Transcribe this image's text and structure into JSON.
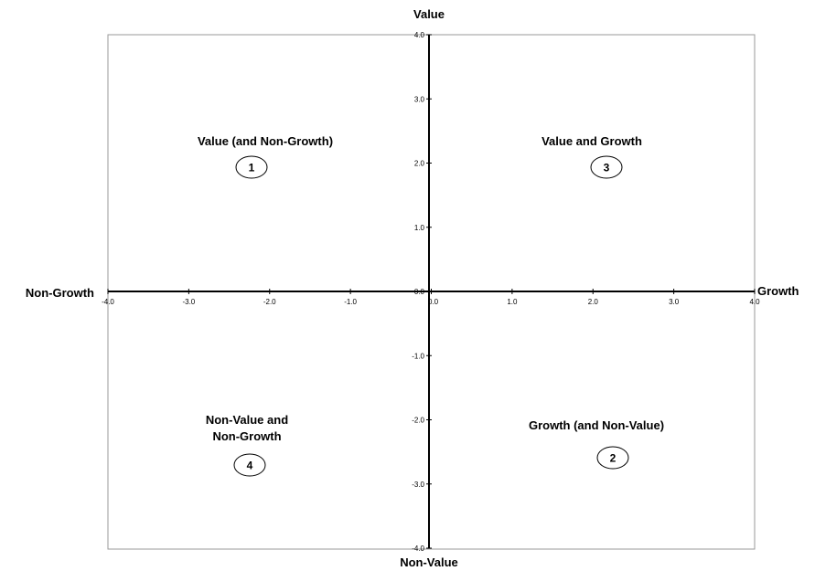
{
  "axes": {
    "top_label": "Value",
    "bottom_label": "Non-Value",
    "left_label": "Non-Growth",
    "right_label": "Growth",
    "x_range": [
      -4,
      4
    ],
    "y_range": [
      -4,
      4
    ],
    "x_ticks": [
      "-4.0",
      "-3.0",
      "-2.0",
      "-1.0",
      "0.0",
      "1.0",
      "2.0",
      "3.0",
      "4.0"
    ],
    "y_ticks": [
      "4.0",
      "3.0",
      "2.0",
      "1.0",
      "0.0",
      "-1.0",
      "-2.0",
      "-3.0",
      "-4.0"
    ]
  },
  "quadrants": [
    {
      "id": "q1",
      "lines": [
        "Value (and Non-Growth)"
      ],
      "number": "1"
    },
    {
      "id": "q3",
      "lines": [
        "Value and Growth"
      ],
      "number": "3"
    },
    {
      "id": "q4",
      "lines": [
        "Non-Value and",
        "Non-Growth"
      ],
      "number": "4"
    },
    {
      "id": "q2",
      "lines": [
        "Growth (and Non-Value)"
      ],
      "number": "2"
    }
  ]
}
